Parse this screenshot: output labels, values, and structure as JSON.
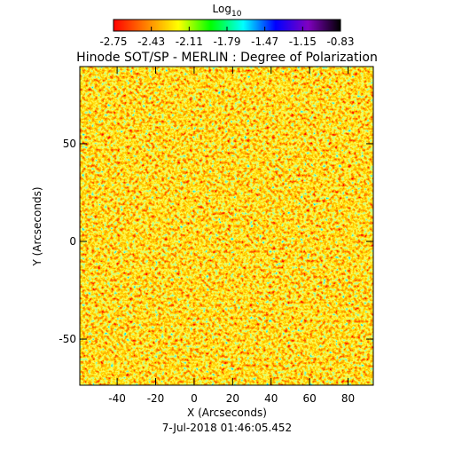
{
  "chart_data": {
    "type": "image",
    "title": "Hinode SOT/SP - MERLIN : Degree of Polarization",
    "xlabel": "X (Arcseconds)",
    "ylabel": "Y (Arcseconds)",
    "date": "7-Jul-2018 01:46:05.452",
    "xlim": [
      -59.4,
      93.1
    ],
    "xticks": [
      -40,
      -20,
      0,
      20,
      40,
      60,
      80
    ],
    "ylim": [
      -73.6,
      89.5
    ],
    "yticks": [
      -50,
      0,
      50
    ],
    "colorbar": {
      "label": "Log",
      "label_sub": "10",
      "clim": [
        -2.75,
        -0.83
      ],
      "ticks": [
        -2.75,
        -2.43,
        -2.11,
        -1.79,
        -1.47,
        -1.15,
        -0.83
      ],
      "colormap": [
        "#ff0000",
        "#ff8000",
        "#ffff00",
        "#00ff00",
        "#00ffff",
        "#0000ff",
        "#8000c0",
        "#000000"
      ]
    }
  }
}
